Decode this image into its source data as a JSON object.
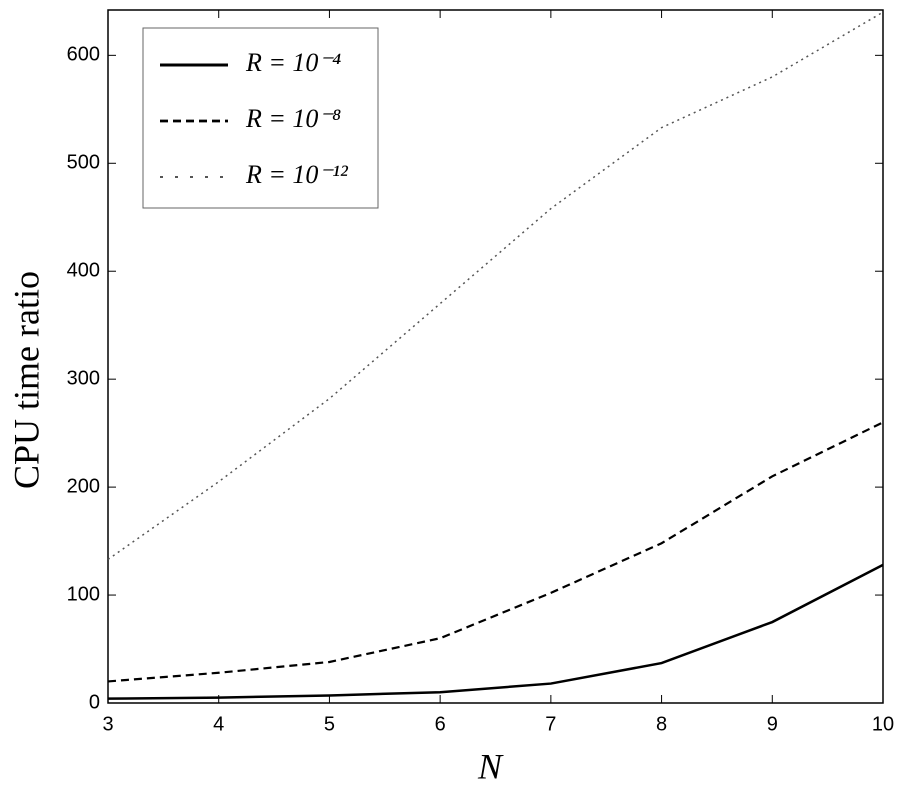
{
  "chart_data": {
    "type": "line",
    "xlabel": "N",
    "ylabel": "CPU time ratio",
    "x": [
      3,
      4,
      5,
      6,
      7,
      8,
      9,
      10
    ],
    "series": [
      {
        "name": "R = 10⁻⁴",
        "color": "#000000",
        "style": "solid",
        "values": [
          4,
          5,
          7,
          10,
          18,
          37,
          75,
          128
        ]
      },
      {
        "name": "R = 10⁻⁸",
        "color": "#000000",
        "style": "dashed",
        "values": [
          20,
          28,
          38,
          60,
          102,
          148,
          210,
          260
        ]
      },
      {
        "name": "R = 10⁻¹²",
        "color": "#555555",
        "style": "dotted",
        "values": [
          133,
          205,
          282,
          370,
          458,
          533,
          580,
          640
        ]
      }
    ],
    "xlim": [
      3,
      10
    ],
    "ylim": [
      0,
      642
    ],
    "xticks": [
      3,
      4,
      5,
      6,
      7,
      8,
      9,
      10
    ],
    "yticks": [
      0,
      100,
      200,
      300,
      400,
      500,
      600
    ],
    "grid": false,
    "legend": "upper left"
  }
}
